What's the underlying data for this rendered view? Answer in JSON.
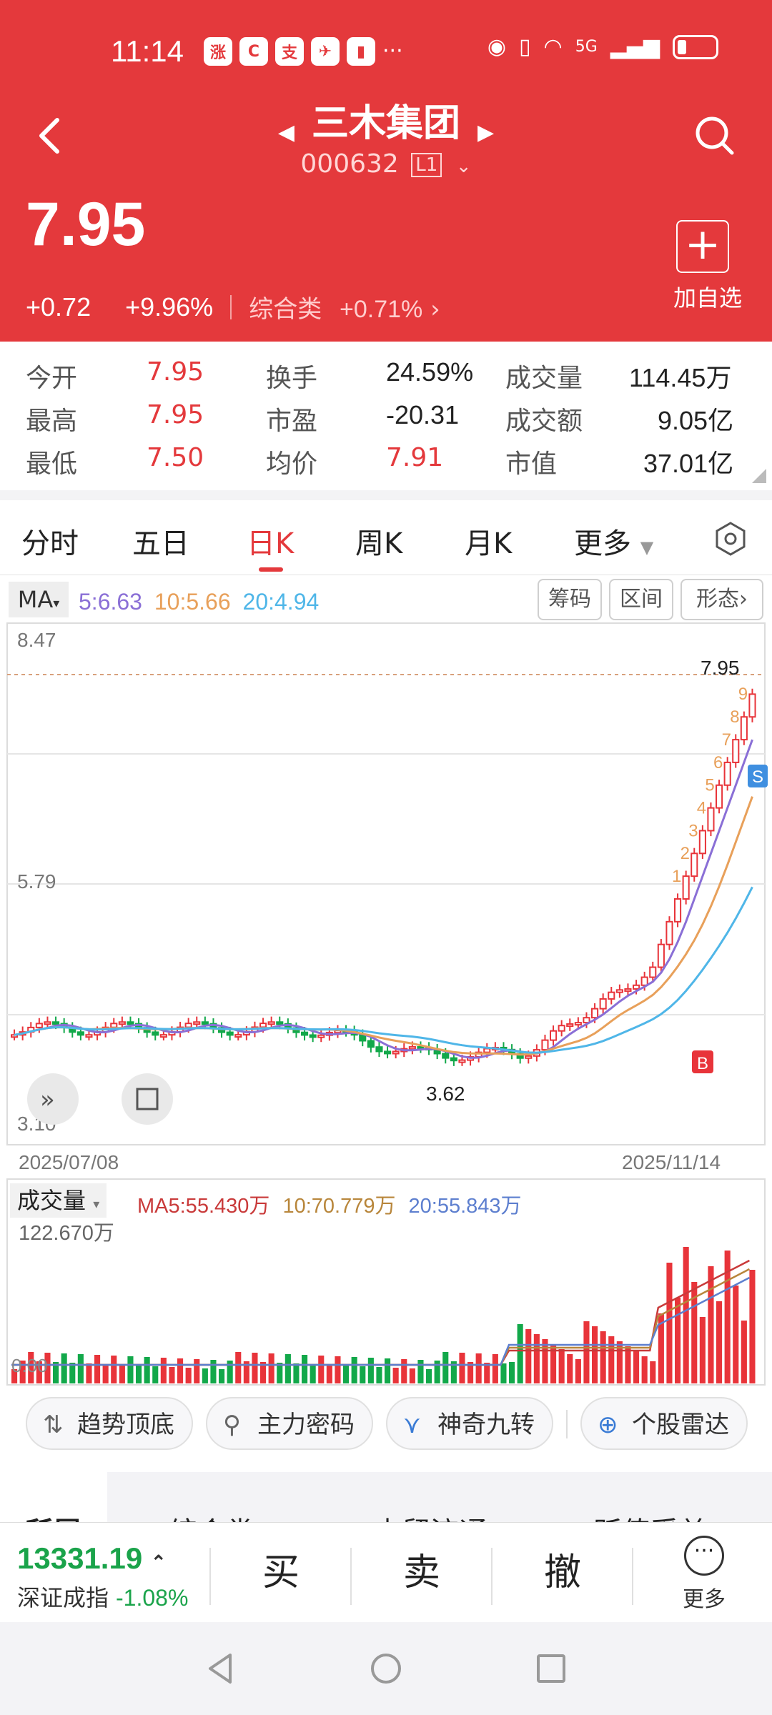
{
  "status": {
    "time": "11:14",
    "network": "5G"
  },
  "header": {
    "name": "三木集团",
    "code": "000632",
    "level": "L1",
    "price": "7.95",
    "change": "+0.72",
    "change_pct": "+9.96%",
    "sector": "综合类",
    "sector_pct": "+0.71%",
    "add_label": "加自选",
    "color": "#e4393c"
  },
  "stats": [
    {
      "label": "今开",
      "value": "7.95",
      "tone": "red"
    },
    {
      "label": "换手",
      "value": "24.59%",
      "tone": "black"
    },
    {
      "label": "成交量",
      "value": "114.45万",
      "tone": "black"
    },
    {
      "label": "最高",
      "value": "7.95",
      "tone": "red"
    },
    {
      "label": "市盈",
      "value": "-20.31",
      "tone": "black"
    },
    {
      "label": "成交额",
      "value": "9.05亿",
      "tone": "black"
    },
    {
      "label": "最低",
      "value": "7.50",
      "tone": "red"
    },
    {
      "label": "均价",
      "value": "7.91",
      "tone": "red"
    },
    {
      "label": "市值",
      "value": "37.01亿",
      "tone": "black"
    }
  ],
  "tabs": [
    "分时",
    "五日",
    "日K",
    "周K",
    "月K",
    "更多"
  ],
  "active_tab": "日K",
  "chart_toolbar": {
    "ma_label": "MA",
    "ma5": "5:6.63",
    "ma10": "10:5.66",
    "ma20": "20:4.94",
    "btn_chips": "筹码",
    "btn_range": "区间",
    "btn_pattern": "形态"
  },
  "chart_data": {
    "type": "candlestick",
    "y_ticks": [
      "8.47",
      "5.79",
      "3.10"
    ],
    "ylim": [
      3.1,
      8.47
    ],
    "x_start": "2025/07/08",
    "x_end": "2025/11/14",
    "high_marker": "7.95",
    "low_marker": "3.62",
    "buy_marker": "B",
    "sell_marker": "S",
    "nine_turn_labels": [
      "1",
      "2",
      "3",
      "4",
      "5",
      "6",
      "7",
      "8",
      "9"
    ],
    "colors": {
      "up": "#e8343a",
      "down": "#12a84a",
      "ma5": "#8a6fd6",
      "ma10": "#e8a05a",
      "ma20": "#4fb6e8"
    }
  },
  "volume": {
    "label": "成交量",
    "ma5": "MA5:55.430万",
    "ma10": "10:70.779万",
    "ma20": "20:55.843万",
    "max_label": "122.670万",
    "zero_label": "0.00"
  },
  "features": [
    "趋势顶底",
    "主力密码",
    "神奇九转",
    "个股雷达"
  ],
  "bottom_tabs_partial": [
    "所属",
    "综合类",
    "内贸流通",
    "贬值受益"
  ],
  "index": {
    "value": "13331.19",
    "name": "深证成指",
    "change": "-1.08%"
  },
  "trade": {
    "buy": "买",
    "sell": "卖",
    "cancel": "撤",
    "more": "更多"
  }
}
